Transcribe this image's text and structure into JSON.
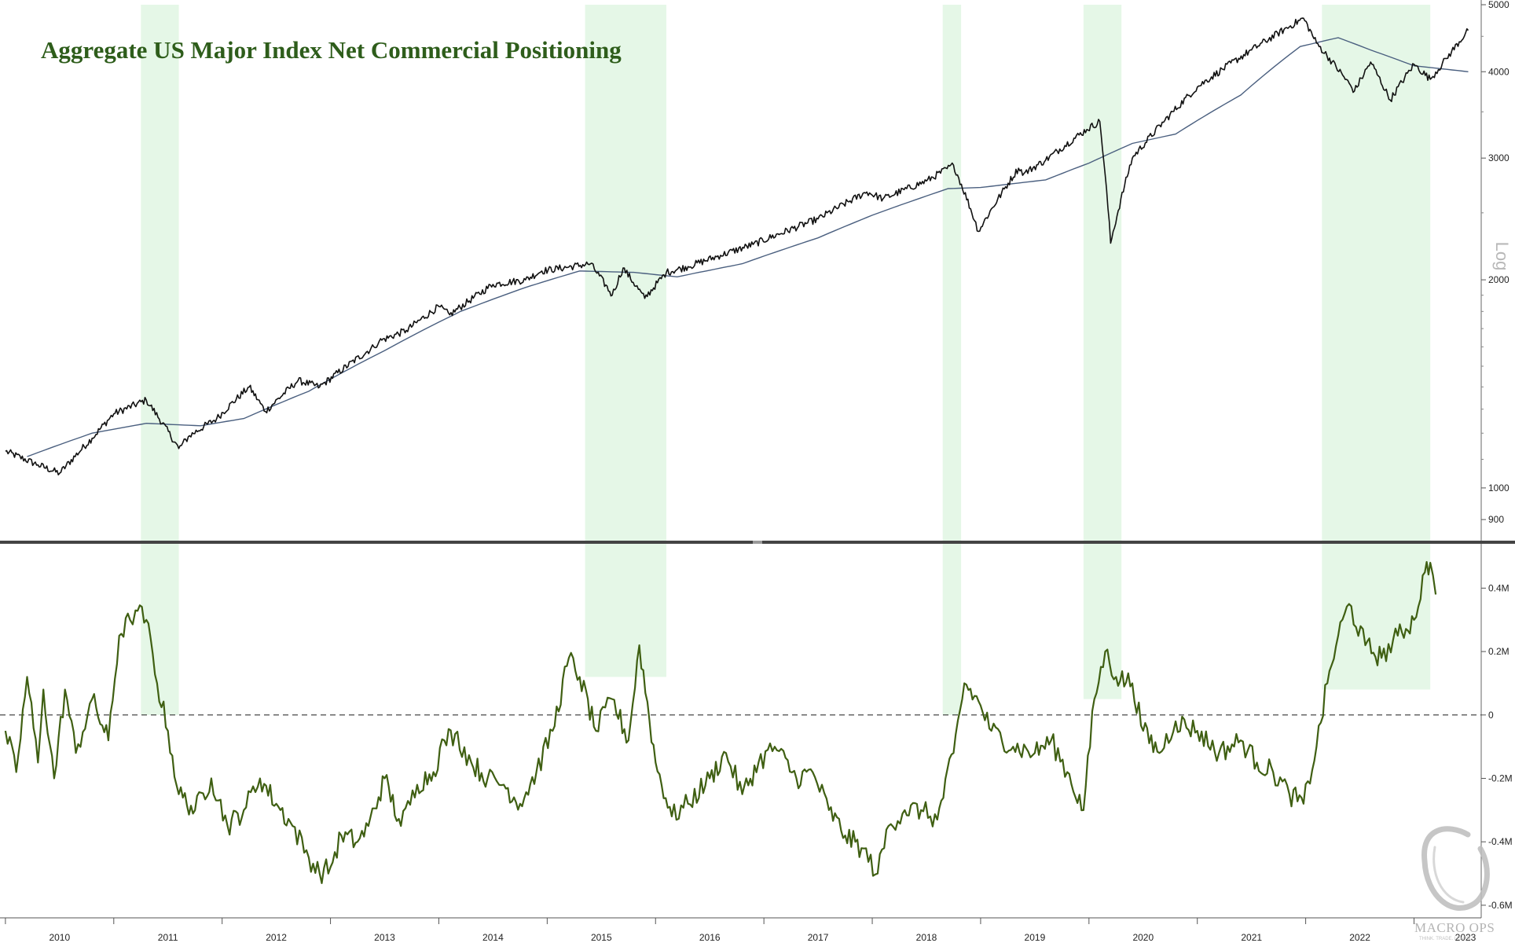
{
  "title": "Aggregate US Major Index Net Commercial Positioning",
  "watermark": {
    "text": "MACRO OPS",
    "tagline": "THINK. TRADE. LEARN."
  },
  "colors": {
    "price": "#111111",
    "moving_average": "#4a5f7f",
    "positioning": "#3f5f12",
    "highlight": "#e5f7e7",
    "title": "#2e5d1b",
    "divider": "#444444"
  },
  "chart_data": [
    {
      "type": "line",
      "panel": "upper",
      "scale": "log",
      "scale_label": "Log",
      "ylim": [
        850,
        5000
      ],
      "y_ticks": [
        900,
        1000,
        2000,
        3000,
        4000,
        5000
      ],
      "y_tick_labels": [
        "900",
        "1000",
        "2000",
        "3000",
        "4000",
        "5000"
      ],
      "grid": false,
      "series": [
        {
          "role": "price",
          "x": [
            2010.0,
            2010.3,
            2010.5,
            2010.8,
            2011.0,
            2011.3,
            2011.6,
            2011.7,
            2011.95,
            2012.25,
            2012.4,
            2012.7,
            2012.9,
            2013.4,
            2013.45,
            2013.7,
            2014.0,
            2014.1,
            2014.5,
            2014.8,
            2014.95,
            2015.4,
            2015.6,
            2015.7,
            2015.9,
            2016.1,
            2016.3,
            2016.6,
            2016.9,
            2017.5,
            2017.95,
            2018.1,
            2018.5,
            2018.75,
            2018.98,
            2019.35,
            2019.4,
            2019.6,
            2019.98,
            2020.1,
            2020.2,
            2020.4,
            2020.7,
            2021.0,
            2021.5,
            2021.98,
            2022.1,
            2022.45,
            2022.6,
            2022.78,
            2023.0,
            2023.15,
            2023.3,
            2023.5
          ],
          "values": [
            1130,
            1080,
            1050,
            1180,
            1280,
            1340,
            1140,
            1190,
            1260,
            1400,
            1290,
            1430,
            1400,
            1600,
            1630,
            1690,
            1830,
            1780,
            1970,
            2000,
            2060,
            2110,
            1900,
            2080,
            1880,
            2050,
            2090,
            2170,
            2250,
            2450,
            2680,
            2620,
            2780,
            2930,
            2350,
            2900,
            2850,
            2980,
            3300,
            3390,
            2260,
            3000,
            3400,
            3800,
            4300,
            4780,
            4400,
            3750,
            4130,
            3640,
            4100,
            3900,
            4180,
            4590
          ]
        },
        {
          "role": "moving_average",
          "x": [
            2010.2,
            2010.8,
            2011.3,
            2011.8,
            2012.2,
            2012.8,
            2013.5,
            2014.2,
            2014.8,
            2015.3,
            2015.8,
            2016.2,
            2016.8,
            2017.5,
            2018.0,
            2018.7,
            2019.0,
            2019.6,
            2020.0,
            2020.4,
            2020.8,
            2021.4,
            2021.95,
            2022.3,
            2022.6,
            2023.0,
            2023.5
          ],
          "values": [
            1110,
            1200,
            1240,
            1230,
            1260,
            1380,
            1580,
            1800,
            1950,
            2060,
            2050,
            2020,
            2110,
            2300,
            2480,
            2710,
            2720,
            2790,
            2950,
            3150,
            3250,
            3700,
            4350,
            4480,
            4300,
            4080,
            4000
          ]
        }
      ]
    },
    {
      "type": "line",
      "panel": "lower",
      "ylim": [
        -0.62,
        0.52
      ],
      "y_ticks": [
        -0.6,
        -0.4,
        -0.2,
        0,
        0.2,
        0.4
      ],
      "y_tick_labels": [
        "-0.6M",
        "-0.4M",
        "-0.2M",
        "0",
        "0.2M",
        "0.4M"
      ],
      "ylabel": "",
      "unit": "M",
      "zero_line": "dashed",
      "grid": false,
      "series": [
        {
          "x": [
            2010.0,
            2010.1,
            2010.2,
            2010.3,
            2010.35,
            2010.45,
            2010.55,
            2010.65,
            2010.8,
            2010.95,
            2011.05,
            2011.15,
            2011.2,
            2011.3,
            2011.4,
            2011.5,
            2011.6,
            2011.75,
            2011.9,
            2012.05,
            2012.2,
            2012.35,
            2012.5,
            2012.65,
            2012.8,
            2012.9,
            2013.0,
            2013.1,
            2013.25,
            2013.35,
            2013.5,
            2013.65,
            2013.8,
            2013.95,
            2014.05,
            2014.15,
            2014.3,
            2014.45,
            2014.6,
            2014.75,
            2014.9,
            2015.05,
            2015.2,
            2015.3,
            2015.45,
            2015.6,
            2015.75,
            2015.85,
            2016.0,
            2016.15,
            2016.3,
            2016.5,
            2016.65,
            2016.8,
            2016.95,
            2017.1,
            2017.3,
            2017.45,
            2017.6,
            2017.75,
            2017.9,
            2018.05,
            2018.15,
            2018.3,
            2018.45,
            2018.6,
            2018.75,
            2018.85,
            2019.0,
            2019.1,
            2019.3,
            2019.5,
            2019.65,
            2019.8,
            2019.95,
            2020.05,
            2020.15,
            2020.25,
            2020.4,
            2020.5,
            2020.65,
            2020.8,
            2021.0,
            2021.2,
            2021.4,
            2021.55,
            2021.7,
            2021.85,
            2021.98,
            2022.1,
            2022.2,
            2022.3,
            2022.4,
            2022.55,
            2022.7,
            2022.85,
            2023.0,
            2023.1,
            2023.15,
            2023.2
          ],
          "values": [
            -0.05,
            -0.18,
            0.12,
            -0.15,
            0.08,
            -0.2,
            0.08,
            -0.12,
            0.05,
            -0.08,
            0.25,
            0.3,
            0.33,
            0.3,
            0.1,
            -0.05,
            -0.25,
            -0.3,
            -0.2,
            -0.35,
            -0.3,
            -0.2,
            -0.28,
            -0.35,
            -0.45,
            -0.5,
            -0.48,
            -0.38,
            -0.4,
            -0.35,
            -0.2,
            -0.35,
            -0.22,
            -0.18,
            -0.08,
            -0.06,
            -0.15,
            -0.2,
            -0.22,
            -0.28,
            -0.18,
            -0.05,
            0.18,
            0.12,
            -0.05,
            0.05,
            -0.08,
            0.22,
            -0.15,
            -0.32,
            -0.28,
            -0.2,
            -0.12,
            -0.25,
            -0.15,
            -0.1,
            -0.2,
            -0.18,
            -0.3,
            -0.38,
            -0.42,
            -0.5,
            -0.35,
            -0.3,
            -0.3,
            -0.33,
            -0.12,
            0.1,
            0.03,
            -0.05,
            -0.1,
            -0.12,
            -0.08,
            -0.18,
            -0.3,
            0.05,
            0.2,
            0.12,
            0.1,
            -0.05,
            -0.12,
            -0.02,
            -0.05,
            -0.12,
            -0.08,
            -0.15,
            -0.18,
            -0.25,
            -0.28,
            -0.1,
            0.1,
            0.25,
            0.35,
            0.22,
            0.18,
            0.25,
            0.3,
            0.45,
            0.48,
            0.38
          ]
        }
      ]
    }
  ],
  "x_axis": {
    "type": "time",
    "range": [
      2009.95,
      2023.62
    ],
    "labels": [
      "2010",
      "2011",
      "2012",
      "2013",
      "2014",
      "2015",
      "2016",
      "2017",
      "2018",
      "2019",
      "2020",
      "2021",
      "2022",
      "2023"
    ]
  },
  "highlight_periods": [
    {
      "start": 2011.25,
      "end": 2011.6,
      "lower_min": 0.0
    },
    {
      "start": 2015.35,
      "end": 2016.1,
      "lower_min": 0.12
    },
    {
      "start": 2018.65,
      "end": 2018.82,
      "lower_min": 0.0
    },
    {
      "start": 2019.95,
      "end": 2020.3,
      "lower_min": 0.05
    },
    {
      "start": 2022.15,
      "end": 2023.15,
      "lower_min": 0.08
    }
  ]
}
